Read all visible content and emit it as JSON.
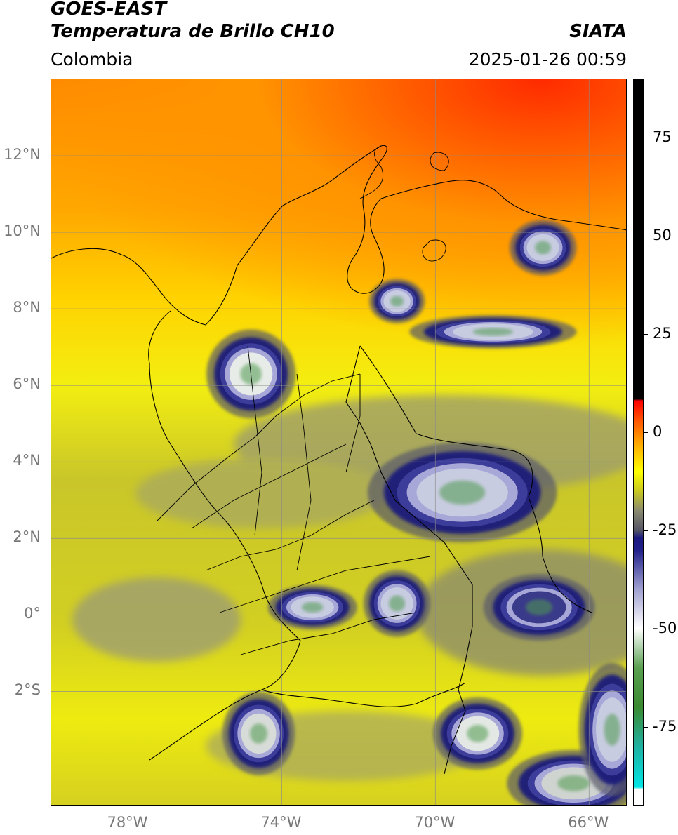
{
  "header": {
    "satellite": "GOES-EAST",
    "product": "Temperatura de Brillo CH10",
    "brand": "SIATA",
    "region": "Colombia",
    "timestamp": "2025-01-26 00:59"
  },
  "map": {
    "lon_range": [
      -80,
      -65
    ],
    "lat_range": [
      -5,
      14
    ],
    "lat_ticks": [
      {
        "value": 12,
        "label": "12°N"
      },
      {
        "value": 10,
        "label": "10°N"
      },
      {
        "value": 8,
        "label": "8°N"
      },
      {
        "value": 6,
        "label": "6°N"
      },
      {
        "value": 4,
        "label": "4°N"
      },
      {
        "value": 2,
        "label": "2°N"
      },
      {
        "value": 0,
        "label": "0°"
      },
      {
        "value": -2,
        "label": "2°S"
      }
    ],
    "lon_ticks": [
      {
        "value": -78,
        "label": "78°W"
      },
      {
        "value": -74,
        "label": "74°W"
      },
      {
        "value": -70,
        "label": "70°W"
      },
      {
        "value": -66,
        "label": "66°W"
      }
    ],
    "cold_cloud_cells": [
      {
        "lon": -74.8,
        "lat": 6.3,
        "rx": 0.8,
        "ry": 0.8,
        "core": "#e8ece8"
      },
      {
        "lon": -68.9,
        "lat": -3.1,
        "rx": 0.8,
        "ry": 0.65,
        "core": "#e4e8e4"
      },
      {
        "lon": -74.6,
        "lat": -3.1,
        "rx": 0.65,
        "ry": 0.75,
        "core": "#d8dcd8"
      },
      {
        "lon": -69.3,
        "lat": 3.2,
        "rx": 1.7,
        "ry": 0.9,
        "core": "#c8cce0"
      },
      {
        "lon": -71.0,
        "lat": 0.3,
        "rx": 0.6,
        "ry": 0.6,
        "core": "#c8cce0"
      },
      {
        "lon": -73.2,
        "lat": 0.2,
        "rx": 0.8,
        "ry": 0.4,
        "core": "#c8cce0"
      },
      {
        "lon": -67.3,
        "lat": 0.2,
        "rx": 1.0,
        "ry": 0.6,
        "core": "#3a3a8a"
      },
      {
        "lon": -66.4,
        "lat": -4.4,
        "rx": 1.2,
        "ry": 0.6,
        "core": "#d0d4d0"
      },
      {
        "lon": -65.4,
        "lat": -3.0,
        "rx": 0.6,
        "ry": 1.2,
        "core": "#c8cce0"
      },
      {
        "lon": -68.5,
        "lat": 7.4,
        "rx": 1.5,
        "ry": 0.3,
        "core": "#c8cce0"
      },
      {
        "lon": -71.0,
        "lat": 8.2,
        "rx": 0.5,
        "ry": 0.4,
        "core": "#c8cce0"
      },
      {
        "lon": -67.2,
        "lat": 9.6,
        "rx": 0.6,
        "ry": 0.5,
        "core": "#c8cce0"
      }
    ]
  },
  "colorbar": {
    "range": [
      -95,
      90
    ],
    "ticks": [
      75,
      50,
      25,
      0,
      -25,
      -50,
      -75
    ],
    "stops": [
      {
        "value": -95,
        "color": "#ffffff"
      },
      {
        "value": -91,
        "color": "#ffffff"
      },
      {
        "value": -90.5,
        "color": "#00e5e5"
      },
      {
        "value": -80,
        "color": "#20b0a0"
      },
      {
        "value": -70,
        "color": "#3a8a30"
      },
      {
        "value": -60,
        "color": "#5aa050"
      },
      {
        "value": -50,
        "color": "#ffffff"
      },
      {
        "value": -40,
        "color": "#a0a0d0"
      },
      {
        "value": -30,
        "color": "#20208a"
      },
      {
        "value": -27,
        "color": "#1a1a80"
      },
      {
        "value": -25,
        "color": "#555566"
      },
      {
        "value": -20,
        "color": "#8a8a70"
      },
      {
        "value": -15,
        "color": "#c8c820"
      },
      {
        "value": -10,
        "color": "#ffff00"
      },
      {
        "value": -3,
        "color": "#ffaa00"
      },
      {
        "value": 3,
        "color": "#ff5500"
      },
      {
        "value": 8,
        "color": "#ff0000"
      },
      {
        "value": 8.5,
        "color": "#000000"
      },
      {
        "value": 90,
        "color": "#000000"
      }
    ]
  }
}
